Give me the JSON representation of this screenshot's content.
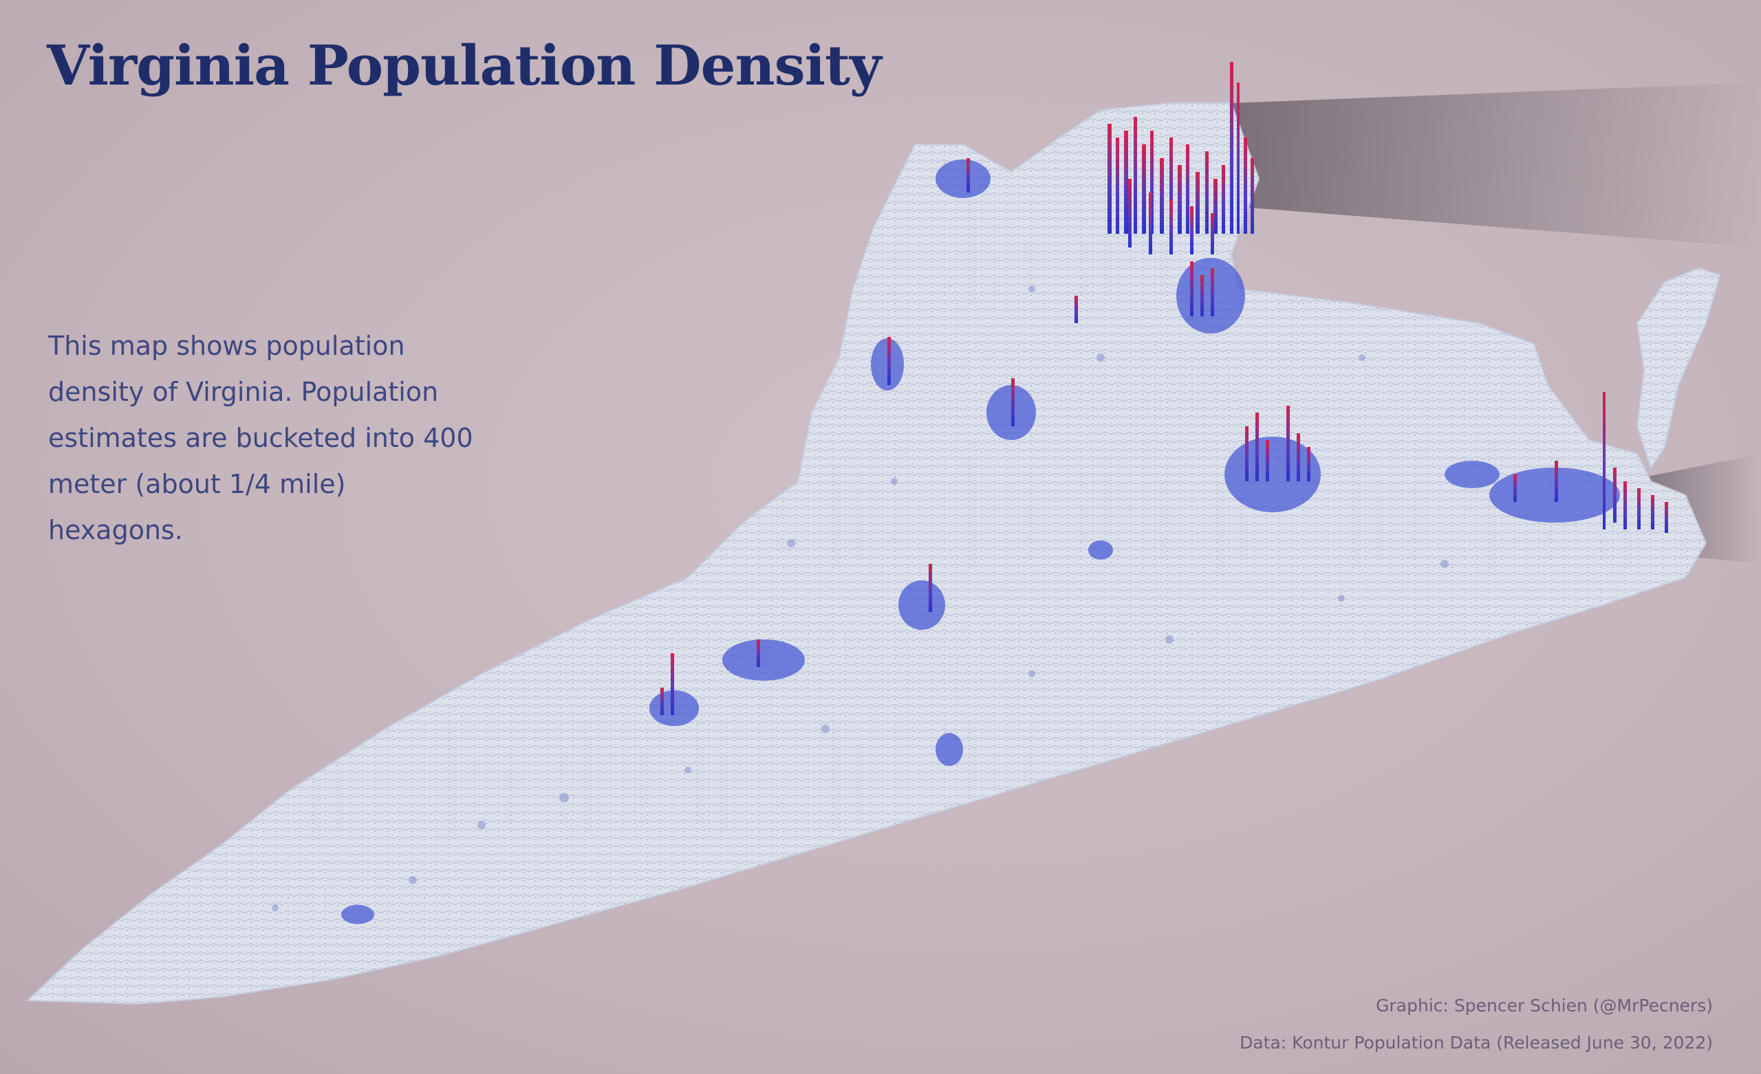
{
  "title": "Virginia Population Density",
  "description": "This map shows population density of Virginia. Population estimates are bucketed into 400 meter (about 1/4 mile) hexagons.",
  "credits": {
    "graphic": "Graphic: Spencer Schien (@MrPecners)",
    "data": "Data: Kontur Population Data (Released June 30, 2022)"
  },
  "colors": {
    "background": "#c5b5bc",
    "title": "#1f2d6b",
    "land": "#dfe3ee",
    "low_density": "#4a5bd6",
    "high_density": "#d0204a"
  }
}
